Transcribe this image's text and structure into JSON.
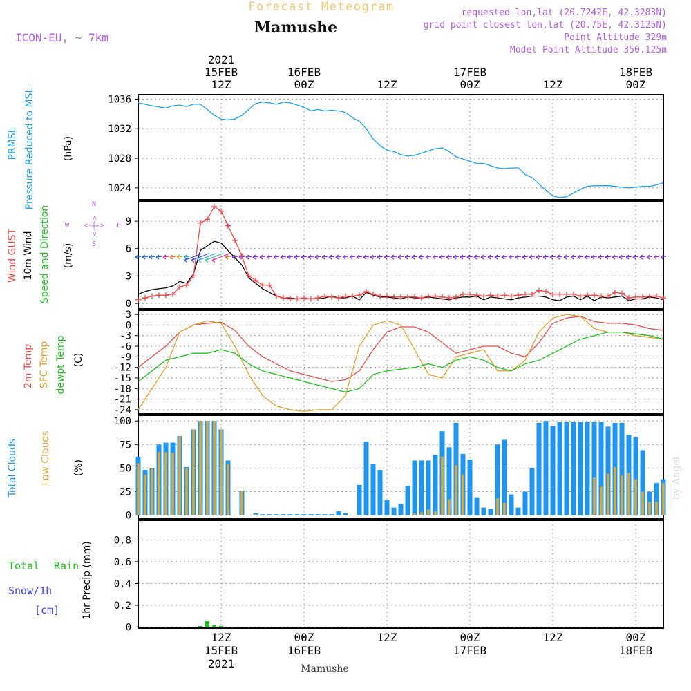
{
  "header": {
    "title_top": "Forecast Meteogram",
    "location": "Mamushe",
    "model": "ICON-EU, ~ 7km",
    "requested": "requested lon,lat (20.7242E, 42.3283N)",
    "gridpoint": "grid point closest lon,lat (20.75E, 42.3125N)",
    "point_alt": "Point Altitude 329m",
    "model_alt": "Model Point Altitude 350.125m"
  },
  "footer": {
    "location": "Mamushe",
    "watermark": "by Angel"
  },
  "time_axis": {
    "year": "2021",
    "ticks": [
      {
        "h": 12,
        "time": "12Z",
        "date": "15FEB"
      },
      {
        "h": 24,
        "time": "00Z",
        "date": "16FEB"
      },
      {
        "h": 36,
        "time": "12Z",
        "date": ""
      },
      {
        "h": 48,
        "time": "00Z",
        "date": "17FEB"
      },
      {
        "h": 60,
        "time": "12Z",
        "date": ""
      },
      {
        "h": 72,
        "time": "00Z",
        "date": "18FEB"
      }
    ],
    "hour_range": [
      0,
      76
    ]
  },
  "labels": {
    "p1": [
      "PRMSL",
      "Pressure Reduced to MSL",
      "(hPa)"
    ],
    "p2": [
      "Wind GUST",
      "10m Wind",
      "Speed and Direction",
      "(m/s)"
    ],
    "compass": {
      "n": "N",
      "s": "S",
      "w": "W",
      "e": "E",
      "arrow": "<-|->"
    },
    "p3": [
      "2m Temp",
      "SFC Temp",
      "dewpt Temp",
      "(C)"
    ],
    "p4": [
      "Total Clouds",
      "Low Clouds",
      "(%)"
    ],
    "p5": [
      "Total",
      "Rain",
      "Snow/1h",
      "[cm]",
      "1hr Precip (mm)"
    ]
  },
  "colors": {
    "pressure": "#1ea0f0",
    "gust": "#f04848",
    "wind": "#000000",
    "t2m": "#e84a4a",
    "tsfc": "#e0a030",
    "dewpt": "#22c022",
    "total_clouds": "#1e96f0",
    "low_clouds": "#d8aa44",
    "rain": "#22c022",
    "snow": "#4040f0",
    "meta": "#b060e0",
    "title_top": "#f0c878"
  },
  "chart_data": [
    {
      "type": "line",
      "name": "pressure",
      "title": "PRMSL",
      "ylabel": "(hPa)",
      "ylim": [
        1022.4,
        1036.6
      ],
      "yticks": [
        1024,
        1028,
        1032,
        1036
      ],
      "x": [
        0,
        2,
        4,
        5,
        6,
        7,
        8,
        9,
        10,
        11,
        12,
        13,
        14,
        15,
        16,
        17,
        18,
        19,
        20,
        21,
        22,
        23,
        24,
        25,
        26,
        27,
        28,
        29,
        30,
        31,
        32,
        33,
        34,
        35,
        36,
        37,
        38,
        39,
        40,
        41,
        42,
        43,
        44,
        45,
        46,
        47,
        48,
        49,
        50,
        51,
        52,
        53,
        54,
        55,
        56,
        57,
        58,
        59,
        60,
        61,
        62,
        63,
        64,
        65,
        66,
        67,
        68,
        69,
        70,
        71,
        72,
        73,
        74,
        75,
        76
      ],
      "values": [
        1035.5,
        1035.1,
        1034.8,
        1035.1,
        1035.2,
        1035.0,
        1035.3,
        1035.3,
        1034.6,
        1033.8,
        1033.3,
        1033.2,
        1033.3,
        1033.8,
        1034.6,
        1035.4,
        1035.6,
        1035.5,
        1035.3,
        1035.6,
        1035.5,
        1035.2,
        1034.9,
        1034.4,
        1034.6,
        1034.4,
        1034.5,
        1034.4,
        1034.2,
        1033.5,
        1033.0,
        1032.0,
        1030.6,
        1029.7,
        1029.1,
        1028.9,
        1028.5,
        1028.3,
        1028.4,
        1028.7,
        1029.0,
        1029.3,
        1029.4,
        1028.9,
        1028.2,
        1027.9,
        1027.6,
        1027.3,
        1027.3,
        1027.0,
        1026.7,
        1026.6,
        1026.7,
        1026.7,
        1025.8,
        1025.4,
        1024.5,
        1023.7,
        1022.9,
        1022.7,
        1022.8,
        1023.3,
        1023.8,
        1024.2,
        1024.3,
        1024.3,
        1024.3,
        1024.2,
        1024.1,
        1024.0,
        1024.1,
        1024.2,
        1024.2,
        1024.4,
        1024.7
      ]
    },
    {
      "type": "line",
      "name": "wind",
      "title": "Wind GUST / 10m Wind Speed and Direction",
      "ylabel": "(m/s)",
      "ylim": [
        -0.6,
        11.2
      ],
      "yticks": [
        0,
        3,
        6,
        9
      ],
      "x": [
        0,
        1,
        2,
        3,
        4,
        5,
        6,
        7,
        8,
        9,
        10,
        11,
        12,
        13,
        14,
        15,
        16,
        17,
        18,
        19,
        20,
        21,
        22,
        23,
        24,
        25,
        26,
        27,
        28,
        29,
        30,
        31,
        32,
        33,
        34,
        35,
        36,
        37,
        38,
        39,
        40,
        41,
        42,
        43,
        44,
        45,
        46,
        47,
        48,
        49,
        50,
        51,
        52,
        53,
        54,
        55,
        56,
        57,
        58,
        59,
        60,
        61,
        62,
        63,
        64,
        65,
        66,
        67,
        68,
        69,
        70,
        71,
        72,
        73,
        74,
        75,
        76
      ],
      "series": [
        {
          "name": "Wind GUST",
          "values": [
            0.4,
            0.6,
            0.8,
            0.9,
            0.9,
            1.0,
            1.8,
            2.0,
            3.0,
            8.8,
            9.2,
            10.6,
            10.1,
            8.5,
            6.9,
            5.2,
            3.0,
            2.5,
            2.0,
            2.0,
            0.8,
            0.6,
            0.5,
            0.5,
            0.6,
            0.5,
            0.6,
            0.8,
            0.7,
            0.6,
            0.8,
            0.8,
            0.9,
            1.3,
            1.0,
            0.8,
            0.8,
            0.7,
            0.7,
            0.7,
            0.7,
            0.6,
            0.8,
            0.8,
            0.7,
            0.6,
            0.7,
            1.0,
            1.0,
            0.9,
            0.8,
            0.9,
            0.8,
            0.9,
            0.8,
            0.9,
            1.0,
            1.0,
            1.4,
            1.3,
            1.0,
            1.0,
            1.0,
            1.0,
            0.8,
            0.9,
            0.9,
            0.8,
            0.8,
            1.2,
            1.1,
            0.6,
            0.7,
            0.7,
            0.8,
            0.8,
            0.6
          ]
        },
        {
          "name": "10m Wind",
          "values": [
            1.0,
            1.3,
            1.5,
            1.6,
            1.7,
            1.9,
            2.4,
            2.2,
            3.2,
            5.8,
            6.3,
            6.8,
            6.6,
            5.8,
            5.0,
            4.2,
            2.8,
            2.2,
            1.6,
            1.2,
            0.8,
            0.6,
            0.6,
            0.5,
            0.5,
            0.5,
            0.5,
            0.6,
            0.8,
            0.6,
            0.6,
            0.8,
            0.4,
            1.2,
            0.9,
            0.7,
            0.7,
            0.6,
            0.5,
            0.7,
            0.6,
            0.6,
            0.7,
            0.6,
            0.5,
            0.4,
            0.6,
            0.7,
            0.7,
            0.8,
            0.4,
            0.7,
            0.6,
            0.5,
            0.4,
            0.6,
            0.7,
            0.8,
            0.8,
            0.7,
            0.4,
            0.3,
            0.7,
            0.8,
            0.4,
            0.8,
            0.3,
            0.7,
            0.6,
            0.7,
            0.8,
            0.3,
            0.5,
            0.5,
            0.7,
            0.6,
            0.4
          ]
        }
      ]
    },
    {
      "type": "line",
      "name": "temperature",
      "title": "2m Temp / SFC Temp / dewpt Temp",
      "ylabel": "(C)",
      "ylim": [
        -25.2,
        4.2
      ],
      "yticks": [
        3,
        0,
        -3,
        -6,
        -9,
        -12,
        -15,
        -18,
        -21,
        -24
      ],
      "x": [
        0,
        2,
        4,
        6,
        8,
        10,
        12,
        14,
        16,
        18,
        20,
        22,
        24,
        26,
        28,
        30,
        32,
        34,
        36,
        38,
        40,
        42,
        44,
        46,
        48,
        50,
        52,
        54,
        56,
        58,
        60,
        62,
        64,
        66,
        68,
        70,
        72,
        74,
        76
      ],
      "series": [
        {
          "name": "2m Temp",
          "values": [
            -12,
            -9,
            -6,
            -2,
            0,
            0.5,
            0.8,
            -1.5,
            -6,
            -9,
            -11,
            -13,
            -14,
            -15,
            -16,
            -15.5,
            -13,
            -7,
            -2,
            -0.5,
            -0.5,
            -2,
            -5,
            -8,
            -7,
            -6,
            -6,
            -8,
            -9,
            -5,
            0.5,
            2,
            2.5,
            1,
            0.5,
            0.5,
            0,
            -1,
            -1.5
          ]
        },
        {
          "name": "SFC Temp",
          "values": [
            -24,
            -18,
            -12,
            -2,
            0,
            1.2,
            0.5,
            -6,
            -14,
            -20,
            -23,
            -24,
            -24.5,
            -24,
            -24,
            -20,
            -6,
            0,
            1.2,
            0,
            -7,
            -14,
            -15,
            -9,
            -8,
            -7,
            -13,
            -13,
            -10,
            -2,
            2,
            3,
            2.5,
            -1,
            -2,
            -2,
            -3,
            -3.5,
            -4
          ]
        },
        {
          "name": "dewpt Temp",
          "values": [
            -16,
            -13,
            -10,
            -9,
            -8,
            -8,
            -7,
            -8,
            -11,
            -13,
            -14,
            -15,
            -16,
            -17,
            -18,
            -19,
            -18,
            -14,
            -13,
            -12.5,
            -12,
            -11,
            -12,
            -10,
            -9,
            -10,
            -12,
            -13,
            -11,
            -10,
            -8,
            -6,
            -4,
            -3,
            -2,
            -2,
            -2.5,
            -3,
            -4
          ]
        }
      ]
    },
    {
      "type": "bar",
      "name": "clouds",
      "title": "Total Clouds / Low Clouds",
      "ylabel": "(%)",
      "ylim": [
        -4,
        106
      ],
      "yticks": [
        0,
        25,
        50,
        75,
        100
      ],
      "x": [
        0,
        1,
        2,
        3,
        4,
        5,
        6,
        7,
        8,
        9,
        10,
        11,
        12,
        13,
        14,
        15,
        16,
        17,
        18,
        19,
        20,
        21,
        22,
        23,
        24,
        25,
        26,
        27,
        28,
        29,
        30,
        31,
        32,
        33,
        34,
        35,
        36,
        37,
        38,
        39,
        40,
        41,
        42,
        43,
        44,
        45,
        46,
        47,
        48,
        49,
        50,
        51,
        52,
        53,
        54,
        55,
        56,
        57,
        58,
        59,
        60,
        61,
        62,
        63,
        64,
        65,
        66,
        67,
        68,
        69,
        70,
        71,
        72,
        73,
        74,
        75,
        76
      ],
      "series": [
        {
          "name": "Total Clouds",
          "values": [
            62,
            48,
            50,
            75,
            77,
            77,
            84,
            51,
            91,
            100,
            100,
            100,
            91,
            58,
            0,
            26,
            0,
            2,
            1,
            1,
            1,
            1,
            1,
            1,
            1,
            1,
            1,
            1,
            1,
            4,
            2,
            0,
            32,
            78,
            54,
            48,
            16,
            8,
            12,
            31,
            58,
            58,
            58,
            64,
            89,
            72,
            98,
            65,
            59,
            19,
            8,
            7,
            75,
            80,
            22,
            8,
            25,
            50,
            98,
            100,
            95,
            99,
            99,
            99,
            99,
            99,
            99,
            99,
            94,
            98,
            98,
            85,
            83,
            69,
            25,
            34,
            38
          ]
        },
        {
          "name": "Low Clouds",
          "values": [
            55,
            43,
            50,
            67,
            67,
            66,
            84,
            50,
            91,
            100,
            100,
            100,
            91,
            54,
            0,
            26,
            0,
            1,
            0,
            0,
            0,
            0,
            0,
            0,
            0,
            0,
            0,
            0,
            0,
            0,
            0,
            0,
            0,
            0,
            0,
            0,
            0,
            0,
            0,
            0,
            2,
            3,
            6,
            4,
            62,
            17,
            53,
            43,
            0,
            0,
            0,
            0,
            18,
            13,
            0,
            0,
            0,
            0,
            0,
            0,
            0,
            0,
            0,
            0,
            0,
            0,
            40,
            30,
            44,
            51,
            42,
            45,
            38,
            25,
            14,
            14,
            34
          ]
        }
      ]
    },
    {
      "type": "bar",
      "name": "precip",
      "title": "Total Rain / Snow 1hr Precip",
      "ylabel": "1hr Precip (mm)",
      "ylim": [
        -0.01,
        0.98
      ],
      "yticks": [
        0,
        0.2,
        0.4,
        0.6,
        0.8
      ],
      "x": [
        9,
        10,
        11,
        12
      ],
      "series": [
        {
          "name": "Total Rain",
          "values": [
            0.01,
            0.06,
            0.02,
            0.01
          ]
        },
        {
          "name": "Snow/1h",
          "values": [
            0,
            0,
            0,
            0
          ]
        }
      ]
    }
  ]
}
